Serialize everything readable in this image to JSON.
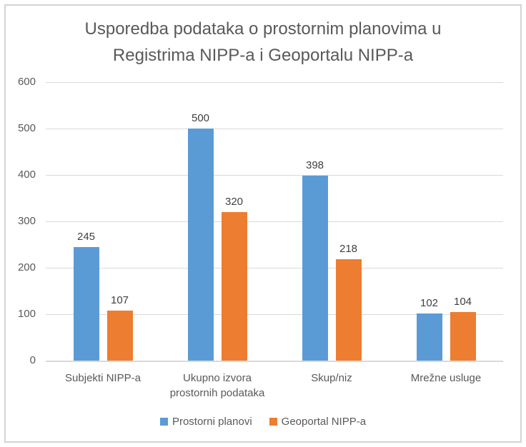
{
  "chart": {
    "title_line1": "Usporedba podataka o prostornim planovima u",
    "title_line2": "Registrima NIPP-a i Geoportalu NIPP-a"
  },
  "chart_data": {
    "type": "bar",
    "title": "Usporedba podataka o prostornim planovima u Registrima NIPP-a i Geoportalu NIPP-a",
    "categories": [
      "Subjekti NIPP-a",
      "Ukupno izvora prostornih podataka",
      "Skup/niz",
      "Mrežne usluge"
    ],
    "series": [
      {
        "name": "Prostorni planovi",
        "color": "#5B9BD5",
        "values": [
          245,
          500,
          398,
          102
        ]
      },
      {
        "name": "Geoportal NIPP-a",
        "color": "#ED7D31",
        "values": [
          107,
          320,
          218,
          104
        ]
      }
    ],
    "xlabel": "",
    "ylabel": "",
    "ylim": [
      0,
      600
    ],
    "yticks": [
      0,
      100,
      200,
      300,
      400,
      500,
      600
    ],
    "grid": true,
    "data_labels": true,
    "legend_position": "bottom",
    "colors": {
      "gridline": "#D9D9D9",
      "axis_text": "#595959",
      "data_label_text": "#404040",
      "title_text": "#595959",
      "border": "#D4D4D4",
      "background": "#FFFFFF"
    }
  }
}
